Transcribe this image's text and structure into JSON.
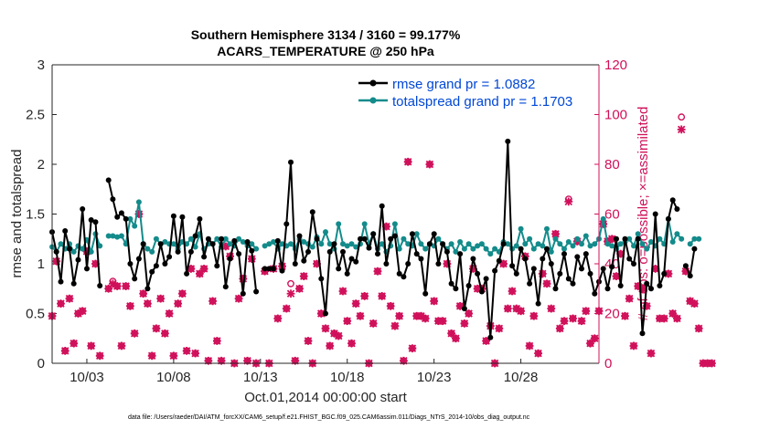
{
  "chart_data": {
    "type": "line",
    "title": [
      "Southern Hemisphere 3134 / 3160 = 99.177%",
      "ACARS_TEMPERATURE @ 250 hPa"
    ],
    "xlabel": "Oct.01,2014 00:00:00 start",
    "ylabel_left": "rmse and totalspread",
    "ylabel_right": "# of obs: o=possible; ×=assimilated",
    "footnote": "data file: /Users/raeder/DAI/ATM_forcXX/CAM6_setup/f.e21.FHIST_BGC.f09_025.CAM6assim.011/Diags_NTrS_2014-10/obs_diag_output.nc",
    "xlim": [
      1,
      32.5
    ],
    "ylim_left": [
      0,
      3
    ],
    "ylim_right": [
      0,
      120
    ],
    "x_ticks": [
      3,
      8,
      13,
      18,
      23,
      28
    ],
    "x_tick_labels": [
      "10/03",
      "10/08",
      "10/13",
      "10/18",
      "10/23",
      "10/28"
    ],
    "y_ticks_left": [
      "0",
      "0.5",
      "1",
      "1.5",
      "2",
      "2.5",
      "3"
    ],
    "y_ticks_right": [
      "0",
      "20",
      "40",
      "60",
      "80",
      "100",
      "120"
    ],
    "colors": {
      "rmse": "#000000",
      "spread": "#148b8b",
      "obs": "#d0105a",
      "legend_text": "#0047d6",
      "axes": "#262626"
    },
    "legend": [
      "rmse grand pr = 1.0882",
      "totalspread grand pr = 1.1703"
    ],
    "x_start": 1.0,
    "x_step": 0.25,
    "series": [
      {
        "name": "rmse",
        "values": [
          1.32,
          1.12,
          0.82,
          1.33,
          1.15,
          0.8,
          1.04,
          1.55,
          0.95,
          1.44,
          1.42,
          0.78,
          null,
          1.84,
          1.65,
          1.47,
          1.51,
          1.45,
          1.0,
          0.85,
          1.05,
          1.2,
          0.75,
          0.92,
          0.98,
          1.2,
          1.0,
          1.07,
          1.48,
          1.12,
          1.47,
          0.9,
          1.12,
          1.28,
          1.45,
          1.07,
          1.25,
          1.2,
          0.98,
          1.25,
          0.77,
          1.05,
          1.23,
          1.1,
          0.7,
          1.22,
          1.13,
          0.72,
          null,
          0.95,
          0.95,
          0.95,
          1.23,
          0.93,
          1.4,
          2.02,
          1.0,
          1.28,
          1.03,
          1.12,
          1.52,
          1.25,
          0.85,
          0.5,
          1.12,
          1.2,
          0.95,
          1.12,
          0.9,
          1.05,
          1.02,
          1.25,
          1.25,
          1.16,
          1.3,
          1.1,
          1.58,
          1.0,
          1.25,
          1.28,
          0.9,
          0.87,
          1.0,
          1.3,
          1.1,
          1.05,
          0.7,
          1.2,
          1.3,
          1.0,
          1.2,
          1.12,
          0.8,
          0.75,
          1.1,
          0.55,
          0.78,
          1.05,
          0.9,
          0.72,
          0.85,
          0.26,
          0.93,
          1.03,
          1.2,
          2.23,
          0.98,
          0.9,
          1.15,
          1.05,
          0.8,
          0.95,
          0.6,
          1.05,
          1.15,
          1.0,
          0.75,
          0.9,
          1.1,
          0.85,
          0.8,
          1.07,
          0.95,
          1.1,
          0.9,
          0.7,
          0.82,
          0.95,
          0.75,
          0.97,
          1.25,
          0.78,
          1.25,
          1.05,
          1.0,
          1.25,
          0.3,
          0.8,
          0.75,
          1.5,
          0.78,
          0.9,
          1.45,
          1.64,
          1.55,
          null,
          0.98,
          0.88,
          1.15
        ],
        "marker": "filled circle"
      },
      {
        "name": "totalspread",
        "values": [
          1.17,
          1.12,
          1.2,
          1.15,
          1.2,
          1.12,
          1.18,
          1.15,
          1.24,
          1.12,
          1.3,
          1.18,
          null,
          1.28,
          1.28,
          1.27,
          1.28,
          1.2,
          1.45,
          1.38,
          1.62,
          1.2,
          1.15,
          1.12,
          1.25,
          1.2,
          1.22,
          1.2,
          1.2,
          1.15,
          1.22,
          1.2,
          1.25,
          1.17,
          1.3,
          1.15,
          1.2,
          1.2,
          1.25,
          1.17,
          1.25,
          1.2,
          1.18,
          1.25,
          1.22,
          1.18,
          1.2,
          1.15,
          null,
          1.18,
          1.2,
          1.22,
          1.15,
          1.2,
          1.18,
          1.2,
          1.15,
          1.25,
          1.22,
          1.2,
          1.17,
          1.27,
          1.2,
          1.32,
          1.2,
          1.15,
          1.4,
          1.2,
          1.18,
          1.2,
          1.17,
          1.2,
          1.4,
          1.2,
          1.3,
          1.15,
          1.2,
          1.12,
          1.18,
          1.4,
          1.15,
          1.25,
          1.2,
          1.18,
          1.3,
          1.2,
          1.15,
          1.2,
          1.18,
          1.25,
          1.2,
          1.15,
          1.2,
          1.12,
          1.22,
          1.15,
          1.2,
          1.15,
          1.18,
          1.2,
          1.15,
          1.1,
          1.15,
          1.12,
          1.22,
          1.2,
          1.15,
          1.18,
          1.35,
          1.2,
          1.25,
          1.15,
          1.2,
          1.18,
          1.35,
          1.12,
          1.25,
          1.2,
          1.15,
          1.22,
          1.18,
          1.25,
          1.2,
          1.28,
          1.18,
          1.2,
          1.25,
          1.45,
          1.2,
          1.18,
          1.15,
          1.2,
          1.22,
          1.25,
          1.18,
          1.3,
          1.2,
          1.15,
          1.22,
          1.18,
          1.25,
          1.2,
          1.45,
          1.22,
          1.3,
          1.25,
          null,
          1.2,
          1.25,
          1.25
        ],
        "marker": "filled circle"
      },
      {
        "name": "obs_possible",
        "values": [
          19,
          41,
          24,
          5,
          26,
          8,
          20,
          21,
          45,
          7,
          40,
          3,
          null,
          30,
          33,
          31,
          7,
          31,
          23,
          12,
          60,
          28,
          24,
          3,
          14,
          26,
          12,
          20,
          3,
          24,
          28,
          5,
          38,
          4,
          36,
          38,
          1,
          25,
          9,
          1,
          47,
          43,
          0,
          26,
          34,
          1,
          42,
          0,
          null,
          37,
          0,
          38,
          18,
          39,
          22,
          32,
          1,
          30,
          35,
          9,
          0,
          40,
          20,
          14,
          7,
          12,
          11,
          29,
          17,
          8,
          24,
          19,
          27,
          0,
          16,
          37,
          27,
          55,
          23,
          15,
          19,
          1,
          81,
          6,
          19,
          19,
          18,
          80,
          25,
          17,
          17,
          40,
          12,
          10,
          23,
          16,
          20,
          38,
          30,
          30,
          9,
          15,
          0,
          14,
          40,
          22,
          29,
          22,
          21,
          43,
          7,
          19,
          4,
          36,
          32,
          22,
          52,
          14,
          17,
          66,
          18,
          49,
          17,
          21,
          8,
          10,
          21,
          56,
          49,
          50,
          35,
          44,
          19,
          26,
          7,
          31,
          30,
          23,
          4,
          38,
          18,
          18,
          36,
          20,
          18,
          99,
          37,
          25,
          24,
          14,
          0,
          0,
          0
        ],
        "marker": "open circle"
      },
      {
        "name": "obs_assimilated",
        "values": [
          19,
          41,
          24,
          5,
          26,
          8,
          20,
          21,
          45,
          7,
          40,
          3,
          null,
          30,
          32,
          31,
          7,
          31,
          23,
          12,
          60,
          28,
          24,
          3,
          14,
          26,
          12,
          20,
          3,
          24,
          28,
          5,
          38,
          4,
          36,
          38,
          1,
          25,
          9,
          1,
          47,
          43,
          0,
          26,
          34,
          1,
          42,
          0,
          null,
          37,
          0,
          38,
          18,
          39,
          22,
          28,
          1,
          30,
          35,
          9,
          0,
          40,
          20,
          14,
          7,
          12,
          11,
          29,
          17,
          8,
          24,
          19,
          27,
          0,
          16,
          37,
          27,
          55,
          23,
          15,
          19,
          1,
          81,
          6,
          19,
          19,
          18,
          80,
          25,
          17,
          17,
          40,
          12,
          10,
          23,
          16,
          20,
          38,
          30,
          30,
          9,
          15,
          0,
          14,
          40,
          22,
          29,
          22,
          21,
          43,
          7,
          19,
          4,
          36,
          32,
          22,
          52,
          14,
          17,
          65,
          18,
          49,
          17,
          21,
          8,
          10,
          21,
          56,
          49,
          50,
          35,
          44,
          19,
          26,
          7,
          31,
          30,
          23,
          4,
          38,
          18,
          18,
          36,
          20,
          18,
          94,
          37,
          25,
          24,
          14,
          0,
          0,
          0
        ],
        "marker": "x (asterisk)"
      }
    ]
  }
}
